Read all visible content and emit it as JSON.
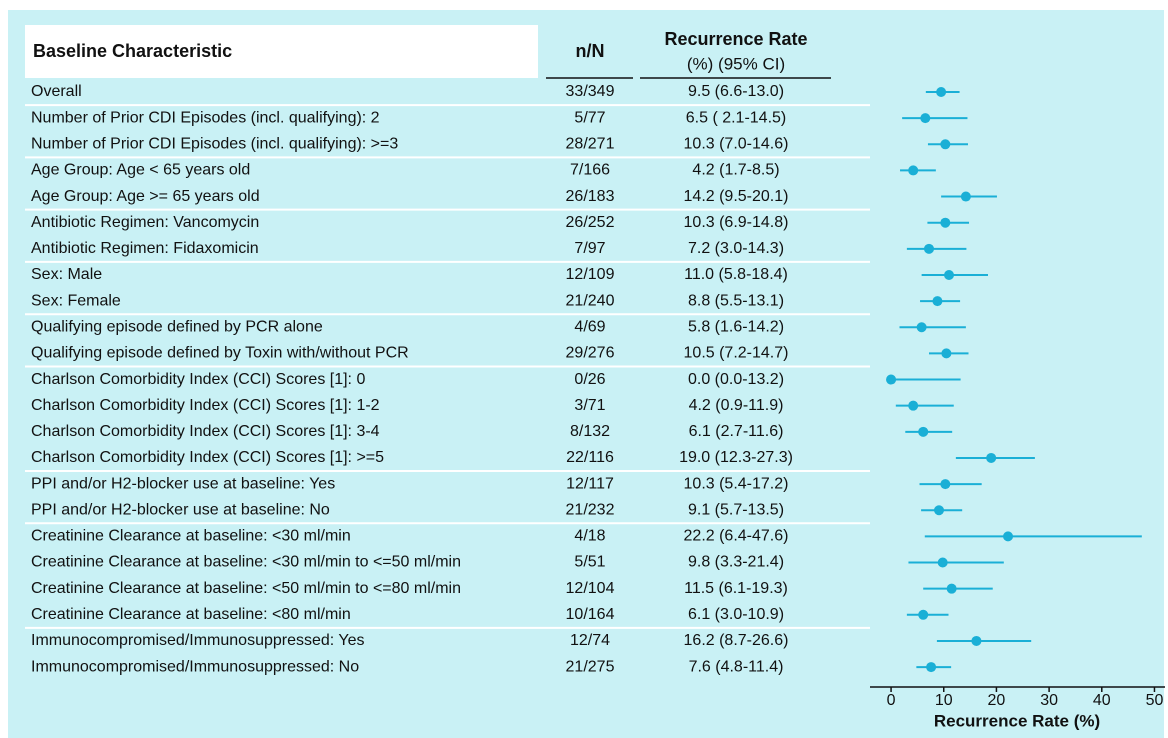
{
  "chart_data": {
    "type": "forest",
    "headers": {
      "characteristic": "Baseline Characteristic",
      "n": "n/N",
      "rate": "Recurrence Rate",
      "rate_sub": "(%) (95% CI)"
    },
    "xlabel": "Recurrence Rate (%)",
    "color": "#1aafd6",
    "categories": [
      "Overall",
      "Number of Prior CDI Episodes (incl. qualifying): 2",
      "Number of Prior CDI Episodes (incl. qualifying): >=3",
      "Age Group: Age < 65 years old",
      "Age Group: Age >= 65 years old",
      "Antibiotic Regimen: Vancomycin",
      "Antibiotic Regimen: Fidaxomicin",
      "Sex: Male",
      "Sex: Female",
      "Qualifying episode defined by PCR alone",
      "Qualifying episode defined by Toxin with/without PCR",
      "Charlson Comorbidity Index (CCI) Scores [1]: 0",
      "Charlson Comorbidity Index (CCI) Scores [1]: 1-2",
      "Charlson Comorbidity Index (CCI) Scores [1]: 3-4",
      "Charlson Comorbidity Index (CCI) Scores [1]: >=5",
      "PPI and/or H2-blocker use at baseline: Yes",
      "PPI and/or H2-blocker use at baseline: No",
      "Creatinine Clearance at baseline: <30 ml/min",
      "Creatinine Clearance at baseline: <30 ml/min to <=50 ml/min",
      "Creatinine Clearance at baseline: <50 ml/min to <=80 ml/min",
      "Creatinine Clearance at baseline: <80 ml/min",
      "Immunocompromised/Immunosuppressed: Yes",
      "Immunocompromised/Immunosuppressed: No"
    ],
    "n_labels": [
      "33/349",
      "5/77",
      "28/271",
      "7/166",
      "26/183",
      "26/252",
      "7/97",
      "12/109",
      "21/240",
      "4/69",
      "29/276",
      "0/26",
      "3/71",
      "8/132",
      "22/116",
      "12/117",
      "21/232",
      "4/18",
      "5/51",
      "12/104",
      "10/164",
      "12/74",
      "21/275"
    ],
    "rate_labels": [
      "9.5 (6.6-13.0)",
      "6.5 ( 2.1-14.5)",
      "10.3 (7.0-14.6)",
      "4.2 (1.7-8.5)",
      "14.2 (9.5-20.1)",
      "10.3 (6.9-14.8)",
      "7.2 (3.0-14.3)",
      "11.0 (5.8-18.4)",
      "8.8 (5.5-13.1)",
      "5.8 (1.6-14.2)",
      "10.5 (7.2-14.7)",
      "0.0 (0.0-13.2)",
      "4.2 (0.9-11.9)",
      "6.1 (2.7-11.6)",
      "19.0 (12.3-27.3)",
      "10.3 (5.4-17.2)",
      "9.1 (5.7-13.5)",
      "22.2 (6.4-47.6)",
      "9.8 (3.3-21.4)",
      "11.5 (6.1-19.3)",
      "6.1 (3.0-10.9)",
      "16.2 (8.7-26.6)",
      "7.6 (4.8-11.4)"
    ],
    "values": [
      9.5,
      6.5,
      10.3,
      4.2,
      14.2,
      10.3,
      7.2,
      11.0,
      8.8,
      5.8,
      10.5,
      0.0,
      4.2,
      6.1,
      19.0,
      10.3,
      9.1,
      22.2,
      9.8,
      11.5,
      6.1,
      16.2,
      7.6
    ],
    "lower": [
      6.6,
      2.1,
      7.0,
      1.7,
      9.5,
      6.9,
      3.0,
      5.8,
      5.5,
      1.6,
      7.2,
      0.0,
      0.9,
      2.7,
      12.3,
      5.4,
      5.7,
      6.4,
      3.3,
      6.1,
      3.0,
      8.7,
      4.8
    ],
    "upper": [
      13.0,
      14.5,
      14.6,
      8.5,
      20.1,
      14.8,
      14.3,
      18.4,
      13.1,
      14.2,
      14.7,
      13.2,
      11.9,
      11.6,
      27.3,
      17.2,
      13.5,
      47.6,
      21.4,
      19.3,
      10.9,
      26.6,
      11.4
    ],
    "xlim": [
      -4,
      52
    ],
    "xticks": [
      0,
      10,
      20,
      30,
      40,
      50
    ]
  }
}
